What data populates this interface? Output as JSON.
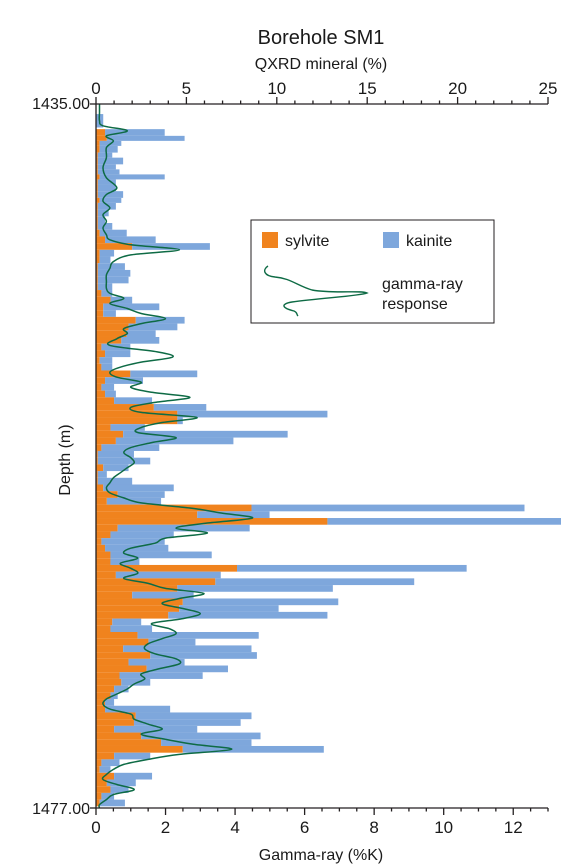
{
  "chart_data": {
    "type": "bar",
    "title": "Borehole SM1",
    "top_axis": {
      "label": "QXRD mineral (%)",
      "range": [
        0,
        25
      ],
      "ticks": [
        "0",
        "5",
        "10",
        "15",
        "20",
        "25"
      ]
    },
    "bottom_axis": {
      "label": "Gamma-ray (%K)",
      "range": [
        0,
        13
      ],
      "ticks": [
        "0",
        "2",
        "4",
        "6",
        "8",
        "10",
        "12"
      ]
    },
    "y_axis": {
      "label": "Depth (m)",
      "range": [
        1435.0,
        1477.0
      ],
      "top_label": "1435.00",
      "bottom_label": "1477.00",
      "inverted": true
    },
    "colors": {
      "sylvite": "#f0831e",
      "kainite": "#7ea7dc",
      "gamma": "#0e6b45",
      "frame": "#231f20"
    },
    "legend": {
      "position": "top-right",
      "sylvite": "sylvite",
      "kainite": "kainite",
      "gamma_line1": "gamma-ray",
      "gamma_line2": "response"
    },
    "series_mineral": {
      "depth_top": [
        1435.6,
        1436.5,
        1436.9,
        1437.2,
        1437.5,
        1437.9,
        1438.2,
        1438.6,
        1438.9,
        1439.2,
        1439.5,
        1439.8,
        1440.2,
        1440.6,
        1440.9,
        1441.3,
        1441.7,
        1442.1,
        1442.5,
        1442.9,
        1443.3,
        1443.7,
        1444.1,
        1444.5,
        1444.9,
        1445.3,
        1445.7,
        1446.1,
        1446.5,
        1446.9,
        1447.3,
        1447.7,
        1448.1,
        1448.5,
        1448.9,
        1449.3,
        1449.7,
        1450.1,
        1450.5,
        1450.9,
        1451.3,
        1451.7,
        1452.1,
        1452.5,
        1452.9,
        1453.3,
        1453.7,
        1454.1,
        1454.5,
        1454.9,
        1455.3,
        1455.7,
        1456.1,
        1456.5,
        1456.9,
        1457.3,
        1457.7,
        1458.1,
        1458.5,
        1458.9,
        1459.3,
        1459.7,
        1460.1,
        1460.5,
        1460.9,
        1461.3,
        1461.7,
        1462.1,
        1462.5,
        1462.9,
        1463.3,
        1463.7,
        1464.1,
        1464.5,
        1464.9,
        1465.3,
        1465.7,
        1466.1,
        1466.5,
        1466.9,
        1467.3,
        1467.7,
        1468.1,
        1468.5,
        1468.9,
        1469.3,
        1469.7,
        1470.1,
        1470.5,
        1470.9,
        1471.3,
        1471.7,
        1472.1,
        1472.5,
        1472.9,
        1473.3,
        1473.7,
        1474.1,
        1474.5,
        1474.9,
        1475.3,
        1475.7,
        1476.1,
        1476.5
      ],
      "depth_bottom": [
        1436.4,
        1436.9,
        1437.2,
        1437.5,
        1437.9,
        1438.2,
        1438.6,
        1438.9,
        1439.2,
        1439.5,
        1439.8,
        1440.2,
        1440.6,
        1440.9,
        1441.3,
        1441.7,
        1442.1,
        1442.5,
        1442.9,
        1443.3,
        1443.7,
        1444.1,
        1444.5,
        1444.9,
        1445.3,
        1445.7,
        1446.1,
        1446.5,
        1446.9,
        1447.3,
        1447.7,
        1448.1,
        1448.5,
        1448.9,
        1449.3,
        1449.7,
        1450.1,
        1450.5,
        1450.9,
        1451.3,
        1451.7,
        1452.1,
        1452.5,
        1452.9,
        1453.3,
        1453.7,
        1454.1,
        1454.5,
        1454.9,
        1455.3,
        1455.7,
        1456.1,
        1456.5,
        1456.9,
        1457.3,
        1457.7,
        1458.1,
        1458.5,
        1458.9,
        1459.3,
        1459.7,
        1460.1,
        1460.5,
        1460.9,
        1461.3,
        1461.7,
        1462.1,
        1462.5,
        1462.9,
        1463.3,
        1463.7,
        1464.1,
        1464.5,
        1464.9,
        1465.3,
        1465.7,
        1466.1,
        1466.5,
        1466.9,
        1467.3,
        1467.7,
        1468.1,
        1468.5,
        1468.9,
        1469.3,
        1469.7,
        1470.1,
        1470.5,
        1470.9,
        1471.3,
        1471.7,
        1472.1,
        1472.5,
        1472.9,
        1473.3,
        1473.7,
        1474.1,
        1474.5,
        1474.9,
        1475.3,
        1475.7,
        1476.1,
        1476.5,
        1476.9
      ],
      "sylvite": [
        0,
        0.5,
        0.6,
        0.2,
        0.2,
        0.1,
        0.1,
        0.1,
        0.1,
        0.2,
        0.1,
        0.1,
        0.1,
        0.2,
        0.1,
        0.1,
        0.1,
        0.1,
        0.2,
        0.5,
        2.0,
        0.2,
        0.2,
        0.1,
        0.1,
        0.1,
        0.1,
        0.3,
        0.8,
        0.4,
        0.4,
        2.2,
        1.8,
        1.7,
        1.4,
        0.3,
        0.5,
        0.2,
        0.3,
        1.9,
        0.5,
        0.3,
        0.5,
        1.0,
        3.2,
        4.5,
        4.5,
        0.8,
        1.5,
        1.1,
        0.3,
        0.1,
        0.1,
        0.4,
        0.1,
        0.1,
        0.4,
        1.2,
        0.6,
        8.6,
        5.6,
        12.8,
        1.2,
        0.8,
        0.3,
        0.5,
        0.8,
        0.8,
        7.8,
        1.1,
        6.6,
        4.5,
        2.0,
        4.8,
        4.6,
        4.0,
        0.9,
        0.8,
        2.3,
        2.9,
        1.5,
        3.0,
        1.8,
        2.8,
        1.3,
        1.4,
        1.0,
        0.8,
        0.5,
        0.5,
        2.2,
        2.1,
        1.0,
        2.5,
        3.6,
        4.8,
        1.0,
        0.3,
        0.2,
        1.0,
        0.6,
        0.8,
        0.3,
        0.2
      ],
      "kainite": [
        0.4,
        3.3,
        4.3,
        1.2,
        1.0,
        0.8,
        1.4,
        1.0,
        1.2,
        3.6,
        1.0,
        1.0,
        1.4,
        1.2,
        1.0,
        0.6,
        0.4,
        0.8,
        1.5,
        2.8,
        4.3,
        0.8,
        0.6,
        1.5,
        1.8,
        1.7,
        0.8,
        0.6,
        1.2,
        3.1,
        0.7,
        2.7,
        2.7,
        1.6,
        2.1,
        1.6,
        1.4,
        0.7,
        0.6,
        3.7,
        2.1,
        0.7,
        0.6,
        2.1,
        2.9,
        8.3,
        0.3,
        1.9,
        9.1,
        6.5,
        3.2,
        2.0,
        2.9,
        1.4,
        0.5,
        1.9,
        3.9,
        2.6,
        3.0,
        15.1,
        4.0,
        18.9,
        7.3,
        3.5,
        3.5,
        3.5,
        5.6,
        1.6,
        12.7,
        5.8,
        11.0,
        8.6,
        3.4,
        8.6,
        5.5,
        8.8,
        1.6,
        2.3,
        6.7,
        2.6,
        7.1,
        5.9,
        3.1,
        4.5,
        4.6,
        1.6,
        0.8,
        0.4,
        0.5,
        3.6,
        6.4,
        5.9,
        4.6,
        6.6,
        5.0,
        7.8,
        2.0,
        1.0,
        0.6,
        2.1,
        1.6,
        1.0,
        0.7,
        1.4
      ]
    },
    "series_gamma": {
      "name": "gamma-ray response",
      "depth": [
        1435.0,
        1435.5,
        1436.0,
        1436.3,
        1436.6,
        1436.9,
        1437.2,
        1437.6,
        1438.2,
        1438.8,
        1439.4,
        1440.0,
        1440.4,
        1440.8,
        1441.2,
        1441.6,
        1442.0,
        1442.4,
        1442.8,
        1443.1,
        1443.4,
        1443.7,
        1444.0,
        1444.4,
        1444.8,
        1445.2,
        1445.6,
        1446.0,
        1446.3,
        1446.6,
        1446.9,
        1447.2,
        1447.5,
        1447.8,
        1448.1,
        1448.4,
        1448.7,
        1449.0,
        1449.4,
        1449.8,
        1450.1,
        1450.4,
        1450.7,
        1451.0,
        1451.3,
        1451.6,
        1451.9,
        1452.2,
        1452.5,
        1452.8,
        1453.1,
        1453.4,
        1453.7,
        1454.0,
        1454.3,
        1454.6,
        1454.9,
        1455.2,
        1455.5,
        1455.8,
        1456.1,
        1456.4,
        1456.7,
        1457.0,
        1457.3,
        1457.6,
        1457.9,
        1458.2,
        1458.5,
        1458.8,
        1459.1,
        1459.4,
        1459.7,
        1460.0,
        1460.3,
        1460.6,
        1460.9,
        1461.2,
        1461.5,
        1461.8,
        1462.1,
        1462.4,
        1462.7,
        1463.0,
        1463.3,
        1463.6,
        1463.9,
        1464.2,
        1464.5,
        1464.8,
        1465.1,
        1465.4,
        1465.7,
        1466.0,
        1466.3,
        1466.6,
        1466.9,
        1467.2,
        1467.5,
        1467.8,
        1468.1,
        1468.4,
        1468.7,
        1469.0,
        1469.3,
        1469.6,
        1469.9,
        1470.2,
        1470.5,
        1470.8,
        1471.1,
        1471.4,
        1471.7,
        1472.0,
        1472.3,
        1472.6,
        1472.9,
        1473.2,
        1473.5,
        1473.8,
        1474.1,
        1474.4,
        1474.7,
        1475.0,
        1475.3,
        1475.6,
        1475.9,
        1476.2,
        1476.5,
        1476.8,
        1477.0
      ],
      "gamma": [
        0.1,
        0.1,
        0.1,
        0.2,
        0.9,
        0.3,
        0.5,
        0.3,
        0.3,
        0.2,
        0.3,
        0.6,
        0.3,
        0.2,
        0.4,
        0.2,
        0.3,
        0.2,
        0.3,
        0.4,
        1.0,
        2.4,
        1.0,
        0.5,
        0.4,
        0.3,
        0.3,
        0.3,
        0.4,
        0.8,
        0.4,
        0.9,
        1.3,
        2.0,
        1.3,
        0.8,
        0.9,
        0.6,
        0.4,
        1.8,
        2.2,
        1.3,
        0.7,
        0.4,
        0.6,
        1.3,
        1.0,
        1.6,
        2.7,
        1.7,
        1.0,
        1.3,
        2.9,
        1.9,
        1.3,
        1.2,
        2.3,
        1.6,
        1.0,
        0.8,
        1.0,
        1.1,
        0.9,
        0.7,
        0.5,
        0.4,
        0.3,
        0.4,
        0.8,
        1.3,
        2.7,
        3.6,
        4.5,
        3.2,
        2.3,
        3.2,
        2.0,
        1.7,
        1.0,
        0.8,
        1.2,
        0.7,
        1.0,
        1.2,
        0.8,
        1.5,
        2.0,
        3.1,
        2.4,
        1.9,
        2.5,
        3.0,
        2.5,
        1.6,
        2.1,
        2.3,
        1.9,
        1.5,
        1.4,
        1.7,
        2.3,
        2.4,
        1.8,
        1.3,
        1.4,
        1.1,
        0.9,
        0.6,
        0.3,
        0.2,
        0.4,
        1.0,
        1.1,
        1.5,
        1.9,
        1.3,
        2.0,
        2.8,
        3.9,
        2.4,
        1.5,
        0.8,
        0.5,
        0.3,
        0.2,
        0.6,
        1.1,
        0.5,
        0.3,
        0.1,
        0.1
      ]
    }
  }
}
